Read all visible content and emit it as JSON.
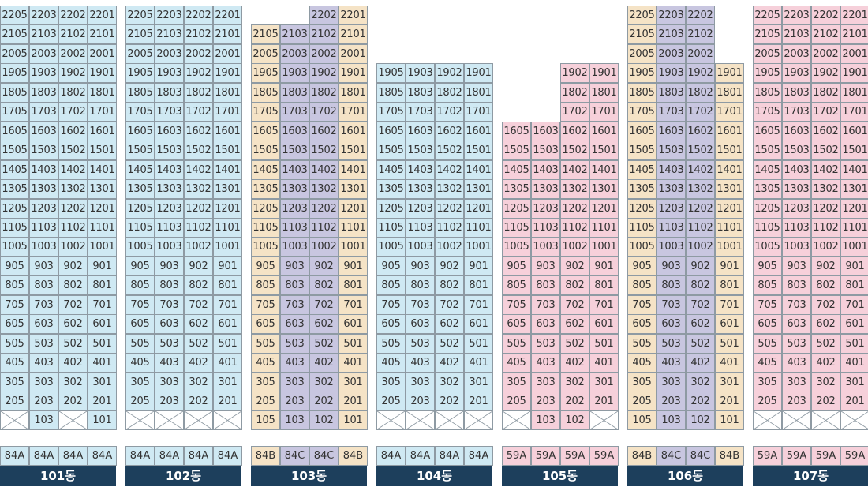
{
  "colors": {
    "blue": "#cfe9f3",
    "tan": "#f5e3c6",
    "purple": "#c8c6e0",
    "pink": "#f6d0da",
    "label_bg": "#1d3f5c"
  },
  "buildings": [
    {
      "name": "101동",
      "unit_types": [
        "84A",
        "84A",
        "84A",
        "84A"
      ],
      "column_colors": [
        "blue",
        "blue",
        "blue",
        "blue"
      ],
      "column_top_floor": [
        22,
        22,
        22,
        22
      ],
      "line_numbers": [
        "05",
        "03",
        "02",
        "01"
      ],
      "ground_floor": [
        "",
        "103",
        "",
        "101"
      ]
    },
    {
      "name": "102동",
      "unit_types": [
        "84A",
        "84A",
        "84A",
        "84A"
      ],
      "column_colors": [
        "blue",
        "blue",
        "blue",
        "blue"
      ],
      "column_top_floor": [
        22,
        22,
        22,
        22
      ],
      "line_numbers": [
        "05",
        "03",
        "02",
        "01"
      ],
      "ground_floor": [
        "",
        "",
        "",
        ""
      ]
    },
    {
      "name": "103동",
      "unit_types": [
        "84B",
        "84C",
        "84C",
        "84B"
      ],
      "column_colors": [
        "tan",
        "purple",
        "purple",
        "tan"
      ],
      "column_top_floor": [
        21,
        21,
        22,
        22
      ],
      "line_numbers": [
        "05",
        "03",
        "02",
        "01"
      ],
      "ground_floor": [
        "105",
        "103",
        "102",
        "101"
      ]
    },
    {
      "name": "104동",
      "unit_types": [
        "84A",
        "84A",
        "84A",
        "84A"
      ],
      "column_colors": [
        "blue",
        "blue",
        "blue",
        "blue"
      ],
      "column_top_floor": [
        19,
        19,
        19,
        19
      ],
      "line_numbers": [
        "05",
        "03",
        "02",
        "01"
      ],
      "ground_floor": [
        "",
        "",
        "",
        ""
      ]
    },
    {
      "name": "105동",
      "unit_types": [
        "59A",
        "59A",
        "59A",
        "59A"
      ],
      "column_colors": [
        "pink",
        "pink",
        "pink",
        "pink"
      ],
      "column_top_floor": [
        16,
        16,
        19,
        19
      ],
      "line_numbers": [
        "05",
        "03",
        "02",
        "01"
      ],
      "ground_floor": [
        "",
        "103",
        "102",
        ""
      ]
    },
    {
      "name": "106동",
      "unit_types": [
        "84B",
        "84C",
        "84C",
        "84B"
      ],
      "column_colors": [
        "tan",
        "purple",
        "purple",
        "tan"
      ],
      "column_top_floor": [
        22,
        22,
        22,
        19
      ],
      "line_numbers": [
        "05",
        "03",
        "02",
        "01"
      ],
      "ground_floor": [
        "105",
        "103",
        "102",
        "101"
      ]
    },
    {
      "name": "107동",
      "unit_types": [
        "59A",
        "59A",
        "59A",
        "59A"
      ],
      "column_colors": [
        "pink",
        "pink",
        "pink",
        "pink"
      ],
      "column_top_floor": [
        22,
        22,
        22,
        22
      ],
      "line_numbers": [
        "05",
        "03",
        "02",
        "01"
      ],
      "ground_floor": [
        "",
        "",
        "",
        ""
      ]
    }
  ]
}
